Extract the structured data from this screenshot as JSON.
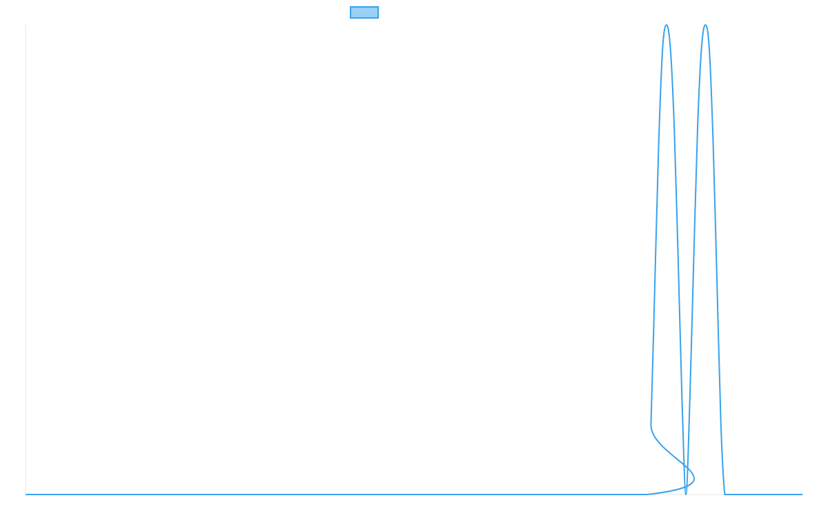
{
  "chart_data": {
    "type": "line",
    "title": "",
    "xlabel": "",
    "ylabel": "",
    "legend_position": "top-center",
    "grid": false,
    "xlim": [
      0,
      1000
    ],
    "ylim": [
      0,
      1
    ],
    "series": [
      {
        "color": "#36a2eb",
        "fill": "#9ad0f5",
        "x": [
          0,
          800,
          805,
          810,
          815,
          820,
          825,
          830,
          835,
          840,
          845,
          850,
          855,
          860,
          865,
          870,
          875,
          880,
          885,
          890,
          895,
          900,
          905,
          910,
          915,
          920,
          925,
          930,
          935,
          940,
          945,
          950,
          955,
          960,
          965,
          970,
          975,
          980,
          985,
          990,
          995,
          1000
        ],
        "y": [
          0,
          0,
          0.15,
          0.45,
          0.75,
          0.95,
          1,
          0.95,
          0.78,
          0.5,
          0.2,
          0,
          0.2,
          0.5,
          0.78,
          0.95,
          1,
          0.95,
          0.75,
          0.45,
          0.15,
          0,
          0,
          0,
          0,
          0,
          0,
          0,
          0,
          0,
          0,
          0,
          0,
          0,
          0,
          0,
          0,
          0,
          0,
          0,
          0,
          0
        ]
      }
    ]
  }
}
